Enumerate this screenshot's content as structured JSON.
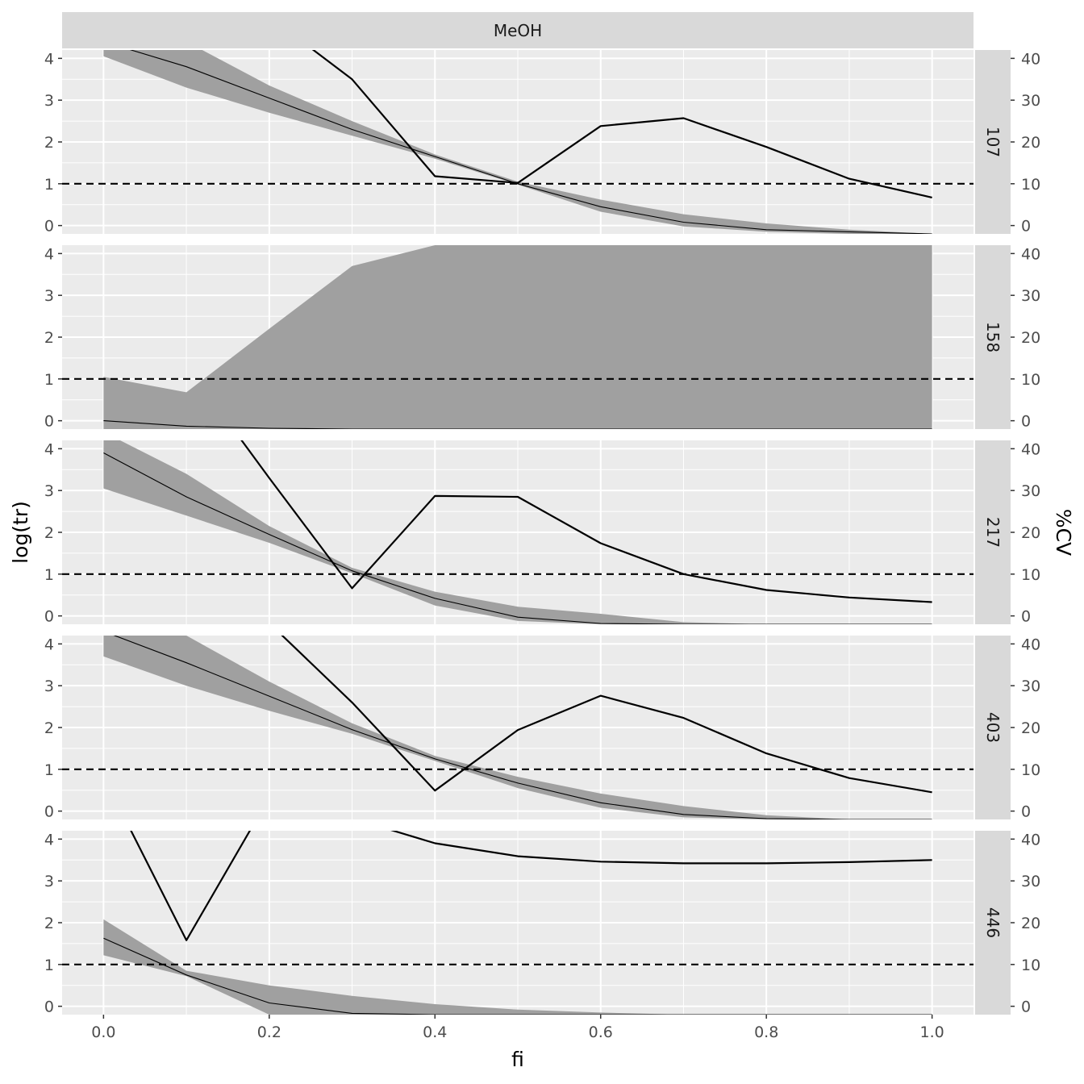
{
  "chart_data": {
    "type": "line",
    "facet_title": "MeOH",
    "xlabel": "fi",
    "ylabel": "log(tr)",
    "ylabel_right": "%CV",
    "xlim": [
      -0.05,
      1.05
    ],
    "ylim": [
      -0.2,
      4.2
    ],
    "ylim_right": [
      -2,
      42
    ],
    "x_ticks": [
      "0.0",
      "0.2",
      "0.4",
      "0.6",
      "0.8",
      "1.0"
    ],
    "y_ticks": [
      "0",
      "1",
      "2",
      "3",
      "4"
    ],
    "y_ticks_right": [
      "0",
      "10",
      "20",
      "30",
      "40"
    ],
    "reference_line": {
      "y": 1,
      "style": "dashed"
    },
    "grid": true,
    "x": [
      0.0,
      0.1,
      0.2,
      0.3,
      0.4,
      0.5,
      0.6,
      0.7,
      0.8,
      0.9,
      1.0
    ],
    "panels": [
      {
        "label": "107",
        "logtr": [
          4.4,
          3.8,
          3.05,
          2.3,
          1.65,
          1.0,
          0.45,
          0.08,
          -0.1,
          -0.15,
          -0.2
        ],
        "ribbon_lower": [
          4.05,
          3.3,
          2.7,
          2.15,
          1.6,
          0.98,
          0.33,
          -0.02,
          -0.15,
          -0.2,
          -0.2
        ],
        "ribbon_upper": [
          4.8,
          4.4,
          3.35,
          2.5,
          1.7,
          1.05,
          0.62,
          0.27,
          0.05,
          -0.1,
          -0.2
        ],
        "cv": [
          60,
          55,
          50,
          35,
          11.8,
          10.2,
          23.8,
          25.7,
          18.8,
          11.2,
          6.7
        ]
      },
      {
        "label": "158",
        "logtr": [
          0.0,
          -0.13,
          -0.18,
          -0.2,
          -0.2,
          -0.2,
          -0.2,
          -0.2,
          -0.2,
          -0.2,
          -0.2
        ],
        "ribbon_lower": [
          -0.2,
          -0.2,
          -0.2,
          -0.2,
          -0.2,
          -0.2,
          -0.2,
          -0.2,
          -0.2,
          -0.2,
          -0.2
        ],
        "ribbon_upper": [
          1.05,
          0.68,
          2.2,
          3.7,
          4.2,
          4.2,
          4.2,
          4.2,
          4.2,
          4.2,
          4.2
        ],
        "cv": []
      },
      {
        "label": "217",
        "logtr": [
          3.9,
          2.85,
          1.95,
          1.08,
          0.42,
          -0.03,
          -0.18,
          -0.2,
          -0.2,
          -0.2,
          -0.2
        ],
        "ribbon_lower": [
          3.05,
          2.4,
          1.75,
          1.02,
          0.25,
          -0.12,
          -0.2,
          -0.2,
          -0.2,
          -0.2,
          -0.2
        ],
        "ribbon_upper": [
          4.4,
          3.4,
          2.15,
          1.15,
          0.58,
          0.22,
          0.05,
          -0.15,
          -0.2,
          -0.2,
          -0.2
        ],
        "cv": [
          80,
          60,
          33,
          6.6,
          28.7,
          28.5,
          17.4,
          10.0,
          6.2,
          4.4,
          3.3
        ]
      },
      {
        "label": "403",
        "logtr": [
          4.3,
          3.55,
          2.75,
          1.95,
          1.25,
          0.67,
          0.2,
          -0.08,
          -0.18,
          -0.2,
          -0.2
        ],
        "ribbon_lower": [
          3.7,
          3.0,
          2.4,
          1.85,
          1.2,
          0.55,
          0.08,
          -0.15,
          -0.2,
          -0.2,
          -0.2
        ],
        "ribbon_upper": [
          4.8,
          4.2,
          3.1,
          2.1,
          1.32,
          0.82,
          0.42,
          0.12,
          -0.1,
          -0.2,
          -0.2
        ],
        "cv": [
          70,
          55,
          45,
          26,
          4.9,
          19.4,
          27.6,
          22.3,
          13.8,
          7.9,
          4.5
        ]
      },
      {
        "label": "446",
        "logtr": [
          1.63,
          0.75,
          0.08,
          -0.17,
          -0.2,
          -0.2,
          -0.2,
          -0.2,
          -0.2,
          -0.2,
          -0.2
        ],
        "ribbon_lower": [
          1.22,
          0.72,
          -0.2,
          -0.2,
          -0.2,
          -0.2,
          -0.2,
          -0.2,
          -0.2,
          -0.2,
          -0.2
        ],
        "ribbon_upper": [
          2.08,
          0.85,
          0.5,
          0.25,
          0.05,
          -0.08,
          -0.15,
          -0.2,
          -0.2,
          -0.2,
          -0.2
        ],
        "cv": [
          55,
          15.8,
          50,
          45,
          39.0,
          35.9,
          34.6,
          34.2,
          34.2,
          34.5,
          35.0
        ]
      }
    ]
  }
}
